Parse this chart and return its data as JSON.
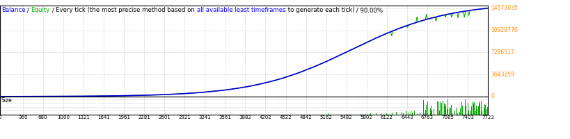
{
  "title_parts": [
    {
      "text": "Balance",
      "color": "#0000FF"
    },
    {
      "text": " / ",
      "color": "#000000"
    },
    {
      "text": "Equity",
      "color": "#00AA00"
    },
    {
      "text": " / ",
      "color": "#000000"
    },
    {
      "text": "Every tick (the most precise method based on ",
      "color": "#000000"
    },
    {
      "text": "all available least timeframes",
      "color": "#0000FF"
    },
    {
      "text": " to generate each tick)",
      "color": "#000000"
    },
    {
      "text": " / 90.00%",
      "color": "#000000"
    }
  ],
  "x_ticks": [
    0,
    360,
    680,
    1000,
    1321,
    1641,
    1961,
    2281,
    2601,
    2921,
    3241,
    3561,
    3882,
    4202,
    4522,
    4842,
    5162,
    5482,
    5802,
    6122,
    6443,
    6763,
    7085,
    7403,
    7723
  ],
  "y_ticks_main": [
    0,
    3643259,
    7286517,
    10929776,
    14573035
  ],
  "y_label_size": "Size",
  "bg_color": "#FFFFFF",
  "grid_color": "#C8C8C8",
  "balance_color": "#0000CC",
  "equity_color": "#00AA00",
  "size_color": "#00AA00",
  "x_max": 7723,
  "y_main_max": 14573035,
  "border_color": "#000000",
  "title_fontsize": 6.2,
  "tick_fontsize": 5.5,
  "right_label_color": "#FF8C00"
}
